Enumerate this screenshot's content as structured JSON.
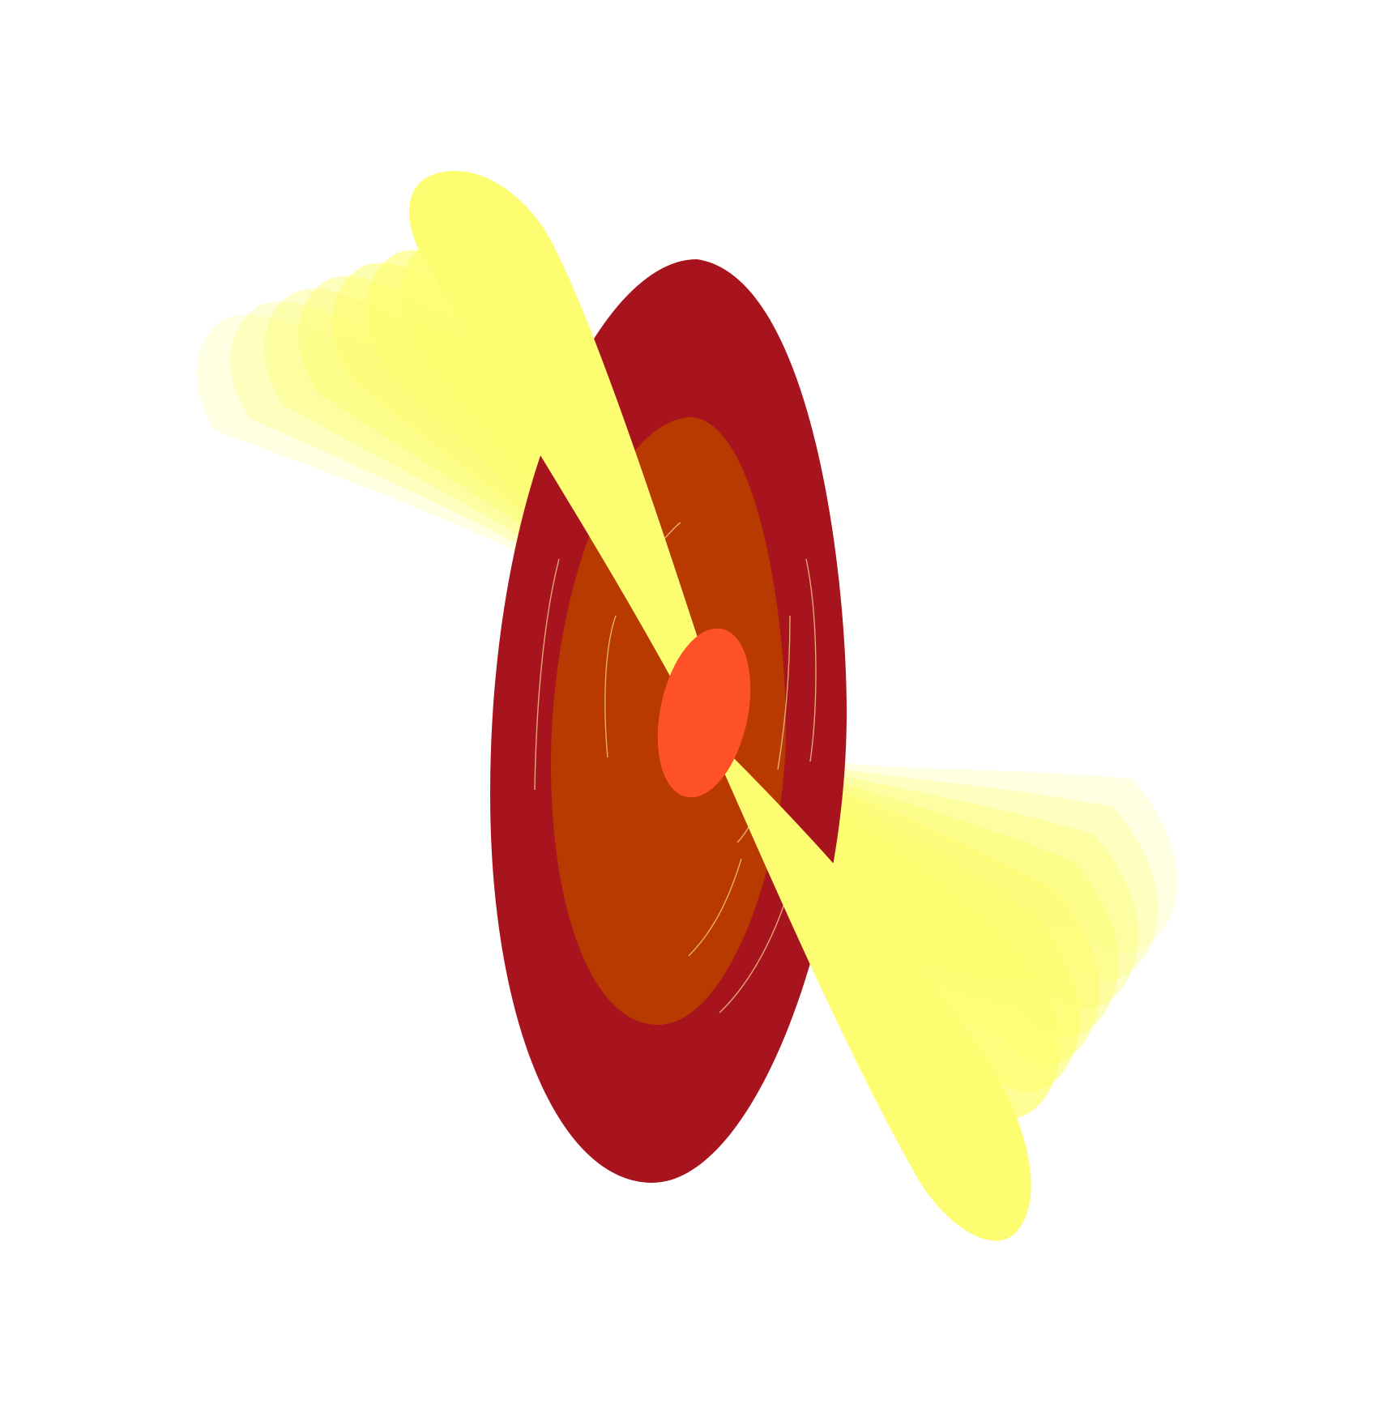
{
  "colors": {
    "background": "#ffffff",
    "outer_disk": "#a8141e",
    "inner_disk": "#b83a00",
    "core": "#ff5127",
    "jet": "#fdfd72",
    "streak": "#f4c98a"
  },
  "figure": {
    "jet_trail_count": 7,
    "streak_count": 8
  }
}
